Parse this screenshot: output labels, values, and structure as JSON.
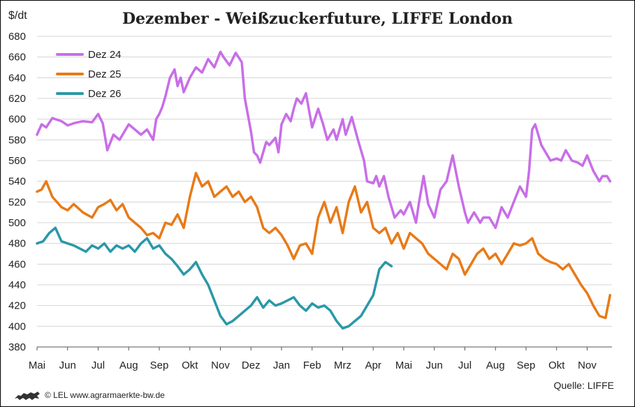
{
  "chart_data": {
    "type": "line",
    "title": "Dezember - Weißzuckerfuture, LIFFE London",
    "ylabel": "$/dt",
    "ylim": [
      380,
      680
    ],
    "yticks": [
      380,
      400,
      420,
      440,
      460,
      480,
      500,
      520,
      540,
      560,
      580,
      600,
      620,
      640,
      660,
      680
    ],
    "x_ticks": [
      "Mai",
      "Jun",
      "Jul",
      "Aug",
      "Sep",
      "Okt",
      "Nov",
      "Dez",
      "Jan",
      "Feb",
      "Mrz",
      "Apr",
      "Mai",
      "Jun",
      "Jul",
      "Aug",
      "Sep",
      "Okt",
      "Nov"
    ],
    "grid": true,
    "legend_position": "top-left",
    "series": [
      {
        "name": "Dez 24",
        "color": "#c86ee8",
        "x": [
          0,
          0.15,
          0.3,
          0.5,
          0.8,
          1.0,
          1.2,
          1.5,
          1.8,
          2.0,
          2.15,
          2.3,
          2.5,
          2.7,
          2.9,
          3.0,
          3.2,
          3.4,
          3.6,
          3.8,
          3.9,
          4.0,
          4.1,
          4.2,
          4.35,
          4.5,
          4.6,
          4.7,
          4.8,
          5.0,
          5.2,
          5.4,
          5.6,
          5.8,
          6.0,
          6.1,
          6.3,
          6.5,
          6.7,
          6.8,
          7.0,
          7.1,
          7.2,
          7.3,
          7.5,
          7.6,
          7.8,
          7.9,
          8.0,
          8.15,
          8.3,
          8.4,
          8.5,
          8.65,
          8.8,
          9.0,
          9.2,
          9.35,
          9.5,
          9.7,
          9.8,
          10.0,
          10.1,
          10.3,
          10.5,
          10.7,
          10.8,
          11.0,
          11.1,
          11.2,
          11.35,
          11.5,
          11.7,
          11.9,
          12.0,
          12.2,
          12.4,
          12.5,
          12.65,
          12.8,
          13.0,
          13.2,
          13.4,
          13.6,
          13.8,
          14.0,
          14.1,
          14.3,
          14.5,
          14.6,
          14.8,
          15.0,
          15.2,
          15.4,
          15.6,
          15.8,
          16.0,
          16.1,
          16.2,
          16.3,
          16.5,
          16.6,
          16.8,
          17.0,
          17.15,
          17.3,
          17.5,
          17.7,
          17.85,
          18.0,
          18.2,
          18.4,
          18.5,
          18.65,
          18.75
        ],
        "values": [
          585,
          595,
          592,
          601,
          598,
          594,
          596,
          598,
          597,
          605,
          596,
          570,
          585,
          580,
          590,
          595,
          590,
          585,
          590,
          580,
          600,
          605,
          612,
          622,
          640,
          648,
          632,
          640,
          626,
          640,
          650,
          645,
          658,
          650,
          665,
          660,
          652,
          664,
          655,
          620,
          588,
          568,
          565,
          558,
          578,
          575,
          582,
          568,
          595,
          605,
          598,
          610,
          620,
          615,
          625,
          592,
          610,
          596,
          580,
          590,
          580,
          600,
          585,
          602,
          580,
          560,
          540,
          538,
          545,
          535,
          545,
          525,
          505,
          512,
          508,
          520,
          500,
          520,
          545,
          518,
          505,
          532,
          540,
          565,
          535,
          510,
          500,
          510,
          500,
          505,
          505,
          495,
          515,
          505,
          520,
          535,
          525,
          550,
          590,
          595,
          575,
          570,
          560,
          562,
          560,
          570,
          560,
          558,
          555,
          565,
          550,
          540,
          545,
          545,
          540
        ],
        "data_labels": false
      },
      {
        "name": "Dez 25",
        "color": "#e87a18",
        "x": [
          0,
          0.15,
          0.3,
          0.5,
          0.8,
          1.0,
          1.2,
          1.5,
          1.8,
          2.0,
          2.2,
          2.4,
          2.6,
          2.8,
          3.0,
          3.2,
          3.4,
          3.6,
          3.8,
          4.0,
          4.2,
          4.4,
          4.6,
          4.8,
          5.0,
          5.2,
          5.4,
          5.6,
          5.8,
          6.0,
          6.2,
          6.4,
          6.6,
          6.8,
          7.0,
          7.2,
          7.4,
          7.6,
          7.8,
          8.0,
          8.2,
          8.4,
          8.6,
          8.8,
          9.0,
          9.2,
          9.4,
          9.6,
          9.8,
          10.0,
          10.2,
          10.4,
          10.6,
          10.8,
          11.0,
          11.2,
          11.4,
          11.6,
          11.8,
          12.0,
          12.2,
          12.4,
          12.6,
          12.8,
          13.0,
          13.2,
          13.4,
          13.6,
          13.8,
          14.0,
          14.2,
          14.4,
          14.6,
          14.8,
          15.0,
          15.2,
          15.4,
          15.6,
          15.8,
          16.0,
          16.2,
          16.4,
          16.6,
          16.8,
          17.0,
          17.2,
          17.4,
          17.6,
          17.8,
          18.0,
          18.2,
          18.4,
          18.6,
          18.75
        ],
        "values": [
          530,
          532,
          540,
          525,
          515,
          512,
          518,
          510,
          505,
          515,
          518,
          522,
          512,
          518,
          505,
          500,
          495,
          488,
          490,
          485,
          500,
          498,
          508,
          495,
          525,
          548,
          535,
          540,
          525,
          530,
          535,
          525,
          530,
          520,
          525,
          515,
          495,
          490,
          495,
          488,
          478,
          465,
          478,
          480,
          470,
          505,
          520,
          500,
          515,
          490,
          520,
          535,
          510,
          520,
          495,
          490,
          495,
          480,
          490,
          475,
          490,
          485,
          480,
          470,
          465,
          460,
          455,
          470,
          465,
          450,
          460,
          470,
          475,
          465,
          470,
          460,
          470,
          480,
          478,
          480,
          485,
          470,
          465,
          462,
          460,
          455,
          460,
          450,
          440,
          432,
          420,
          410,
          408,
          430
        ],
        "data_labels": false
      },
      {
        "name": "Dez 26",
        "color": "#2a98a8",
        "x": [
          0,
          0.2,
          0.4,
          0.6,
          0.8,
          1.0,
          1.2,
          1.4,
          1.6,
          1.8,
          2.0,
          2.2,
          2.4,
          2.6,
          2.8,
          3.0,
          3.2,
          3.4,
          3.6,
          3.8,
          4.0,
          4.2,
          4.4,
          4.6,
          4.8,
          5.0,
          5.2,
          5.4,
          5.6,
          5.8,
          6.0,
          6.2,
          6.4,
          6.6,
          6.8,
          7.0,
          7.2,
          7.4,
          7.6,
          7.8,
          8.0,
          8.2,
          8.4,
          8.6,
          8.8,
          9.0,
          9.2,
          9.4,
          9.6,
          9.8,
          10.0,
          10.2,
          10.4,
          10.6,
          10.8,
          11.0,
          11.2,
          11.4,
          11.6
        ],
        "values": [
          480,
          482,
          490,
          495,
          482,
          480,
          478,
          475,
          472,
          478,
          475,
          480,
          472,
          478,
          475,
          478,
          472,
          480,
          485,
          475,
          478,
          470,
          465,
          458,
          450,
          455,
          462,
          450,
          440,
          425,
          410,
          402,
          405,
          410,
          415,
          420,
          428,
          418,
          425,
          420,
          422,
          425,
          428,
          420,
          415,
          422,
          418,
          420,
          415,
          405,
          398,
          400,
          405,
          410,
          420,
          430,
          455,
          462,
          458
        ],
        "data_labels": false
      }
    ]
  },
  "footer": {
    "copyright": "© LEL www.agrarmaerkte-bw.de",
    "source": "Quelle:  LIFFE"
  }
}
